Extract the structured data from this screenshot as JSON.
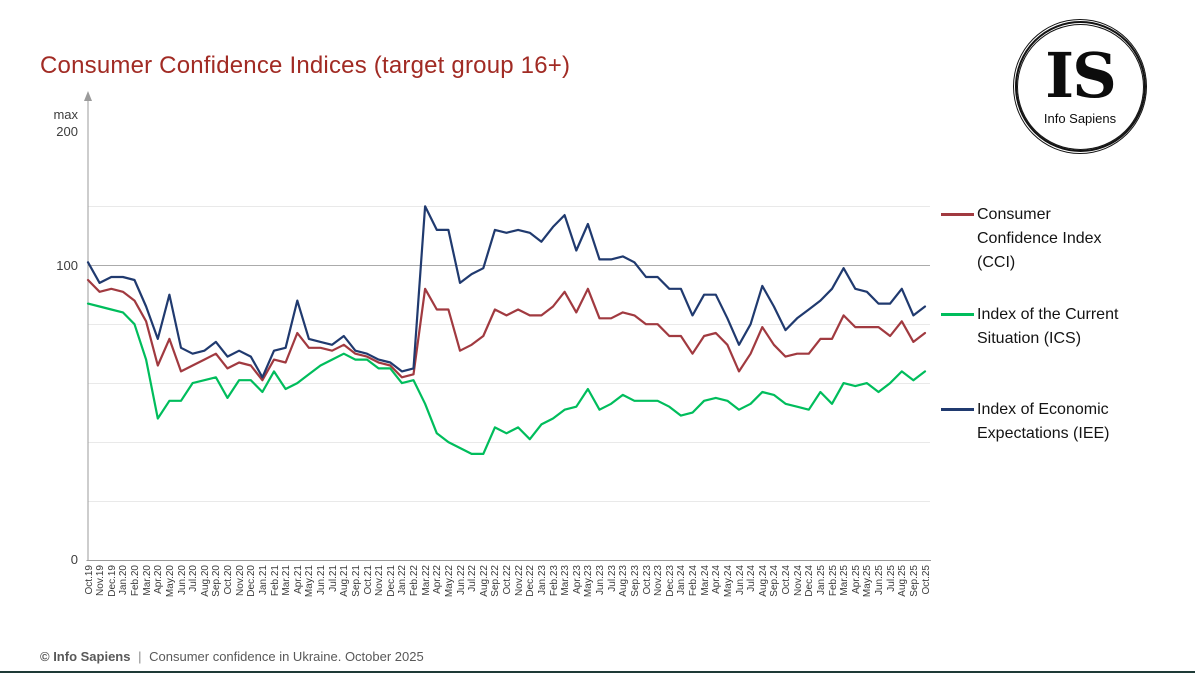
{
  "title": "Consumer Confidence Indices (target group 16+)",
  "colors": {
    "title": "#A12B24",
    "cci": "#A13A40",
    "ics": "#00BD5C",
    "iee": "#203A6F"
  },
  "logo": {
    "monogram": "IS",
    "name": "Info Sapiens"
  },
  "y_axis": {
    "max_label": "max",
    "top_value": "200",
    "mid_value": "100",
    "zero_value": "0"
  },
  "legend": [
    {
      "label": "Consumer Confidence Index (CCI)",
      "lines": [
        "Consumer",
        "Confidence Index",
        "(CCI)"
      ],
      "color": "#A13A40"
    },
    {
      "label": "Index of the Current Situation (ICS)",
      "lines": [
        "Index of the Current",
        "Situation (ICS)"
      ],
      "color": "#00BD5C"
    },
    {
      "label": "Index of Economic Expectations (IEE)",
      "lines": [
        "Index of Economic",
        "Expectations (IEE)"
      ],
      "color": "#203A6F"
    }
  ],
  "footer": {
    "brand": "© Info Sapiens",
    "separator": "|",
    "text": "Consumer confidence in Ukraine. October 2025"
  },
  "chart_data": {
    "type": "line",
    "title": "Consumer Confidence Indices (target group 16+)",
    "xlabel": "",
    "ylabel": "",
    "ylim": [
      0,
      200
    ],
    "grid": true,
    "gridline_values": [
      20,
      40,
      60,
      80,
      100,
      120
    ],
    "emphasized_gridline": 100,
    "legend_position": "right",
    "x": [
      "Oct.19",
      "Nov.19",
      "Dec.19",
      "Jan.20",
      "Feb.20",
      "Mar.20",
      "Apr.20",
      "May.20",
      "Jun.20",
      "Jul.20",
      "Aug.20",
      "Sep.20",
      "Oct.20",
      "Nov.20",
      "Dec.20",
      "Jan.21",
      "Feb.21",
      "Mar.21",
      "Apr.21",
      "May.21",
      "Jun.21",
      "Jul.21",
      "Aug.21",
      "Sep.21",
      "Oct.21",
      "Nov.21",
      "Dec.21",
      "Jan.22",
      "Feb.22",
      "Mar.22",
      "Apr.22",
      "May.22",
      "Jun.22",
      "Jul.22",
      "Aug.22",
      "Sep.22",
      "Oct.22",
      "Nov.22",
      "Dec.22",
      "Jan.23",
      "Feb.23",
      "Mar.23",
      "Apr.23",
      "May.23",
      "Jun.23",
      "Jul.23",
      "Aug.23",
      "Sep.23",
      "Oct.23",
      "Nov.23",
      "Dec.23",
      "Jan.24",
      "Feb.24",
      "Mar.24",
      "Apr.24",
      "May.24",
      "Jun.24",
      "Jul.24",
      "Aug.24",
      "Sep.24",
      "Oct.24",
      "Nov.24",
      "Dec.24",
      "Jan.25",
      "Feb.25",
      "Mar.25",
      "Apr.25",
      "May.25",
      "Jun.25",
      "Jul.25",
      "Aug.25",
      "Sep.25",
      "Oct.25"
    ],
    "series": [
      {
        "id": "cci",
        "name": "Consumer Confidence Index (CCI)",
        "color": "#A13A40",
        "values": [
          95,
          91,
          92,
          91,
          88,
          81,
          66,
          75,
          64,
          66,
          68,
          70,
          65,
          67,
          66,
          61,
          68,
          67,
          77,
          72,
          72,
          71,
          73,
          70,
          69,
          67,
          66,
          62,
          63,
          92,
          85,
          85,
          71,
          73,
          76,
          85,
          83,
          85,
          83,
          83,
          86,
          91,
          84,
          92,
          82,
          82,
          84,
          83,
          80,
          80,
          76,
          76,
          70,
          76,
          77,
          73,
          64,
          70,
          79,
          73,
          69,
          70,
          70,
          75,
          75,
          83,
          79,
          79,
          79,
          76,
          81,
          74,
          77
        ]
      },
      {
        "id": "ics",
        "name": "Index of the Current Situation (ICS)",
        "color": "#00BD5C",
        "values": [
          87,
          86,
          85,
          84,
          80,
          68,
          48,
          54,
          54,
          60,
          61,
          62,
          55,
          61,
          61,
          57,
          64,
          58,
          60,
          63,
          66,
          68,
          70,
          68,
          68,
          65,
          65,
          60,
          61,
          53,
          43,
          40,
          38,
          36,
          36,
          45,
          43,
          45,
          41,
          46,
          48,
          51,
          52,
          58,
          51,
          53,
          56,
          54,
          54,
          54,
          52,
          49,
          50,
          54,
          55,
          54,
          51,
          53,
          57,
          56,
          53,
          52,
          51,
          57,
          53,
          60,
          59,
          60,
          57,
          60,
          64,
          61,
          64
        ]
      },
      {
        "id": "iee",
        "name": "Index of Economic Expectations (IEE)",
        "color": "#203A6F",
        "values": [
          101,
          94,
          96,
          96,
          95,
          86,
          75,
          90,
          72,
          70,
          71,
          74,
          69,
          71,
          69,
          62,
          71,
          72,
          88,
          75,
          74,
          73,
          76,
          71,
          70,
          68,
          67,
          64,
          65,
          120,
          112,
          112,
          94,
          97,
          99,
          112,
          111,
          112,
          111,
          108,
          113,
          117,
          105,
          114,
          102,
          102,
          103,
          101,
          96,
          96,
          92,
          92,
          83,
          90,
          90,
          82,
          73,
          80,
          93,
          86,
          78,
          82,
          85,
          88,
          92,
          99,
          92,
          91,
          87,
          87,
          92,
          83,
          86
        ]
      }
    ]
  }
}
